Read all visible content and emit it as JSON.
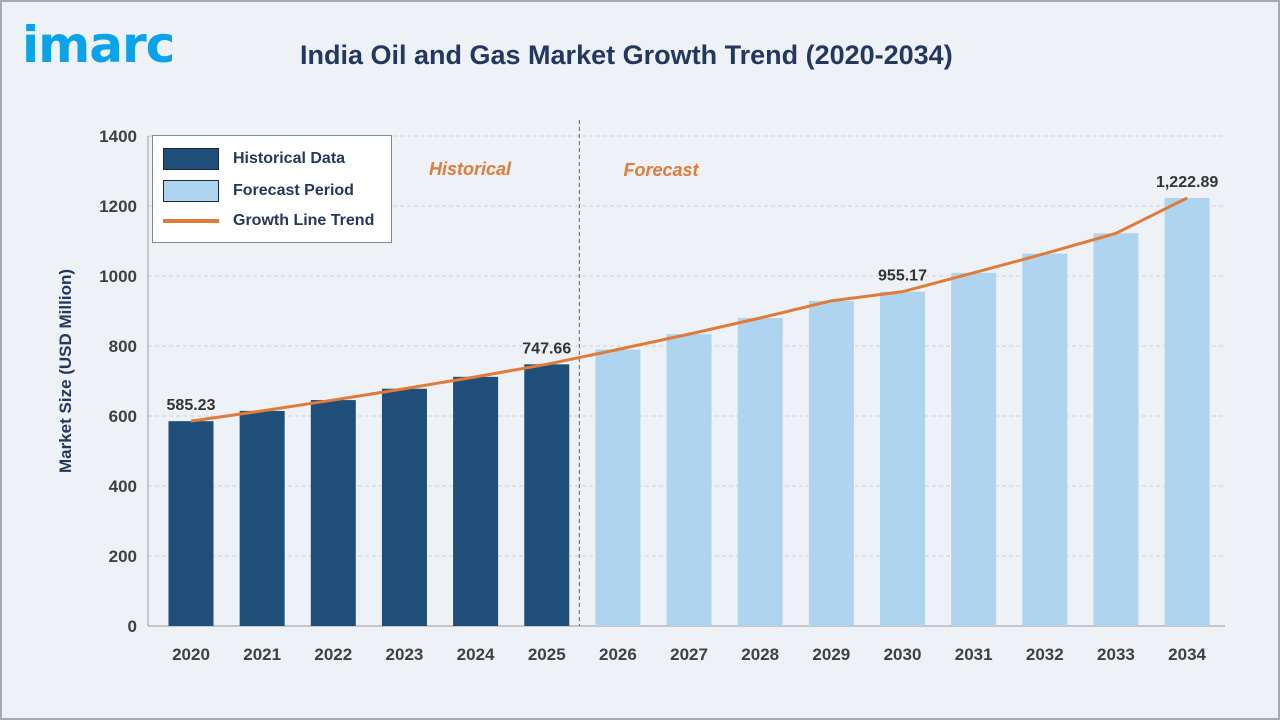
{
  "brand": {
    "logo_text": "imarc"
  },
  "chart_data": {
    "type": "bar",
    "title": "India Oil and Gas Market Growth Trend (2020-2034)",
    "xlabel": "",
    "ylabel": "Market Size (USD Million)",
    "ylim": [
      0,
      1400
    ],
    "yticks": [
      0,
      200,
      400,
      600,
      800,
      1000,
      1200,
      1400
    ],
    "grid": true,
    "legend_placement": "top-left",
    "categories": [
      "2020",
      "2021",
      "2022",
      "2023",
      "2024",
      "2025",
      "2026",
      "2027",
      "2028",
      "2029",
      "2030",
      "2031",
      "2032",
      "2033",
      "2034"
    ],
    "series": [
      {
        "name": "Historical Data",
        "color": "#1f4e79",
        "values": [
          585.23,
          614.6,
          645.5,
          677.9,
          711.9,
          747.66,
          null,
          null,
          null,
          null,
          null,
          null,
          null,
          null,
          null
        ]
      },
      {
        "name": "Forecast Period",
        "color": "#aed4ef",
        "values": [
          null,
          null,
          null,
          null,
          null,
          null,
          790,
          834,
          880,
          929,
          955.17,
          1009,
          1064,
          1122,
          1222.89
        ]
      },
      {
        "name": "Growth Line Trend",
        "type": "line",
        "color": "#e07b39",
        "values": [
          585.23,
          614.6,
          645.5,
          677.9,
          711.9,
          747.66,
          790,
          834,
          880,
          929,
          955.17,
          1009,
          1064,
          1122,
          1222.89
        ]
      }
    ],
    "data_labels": [
      {
        "category": "2020",
        "text": "585.23"
      },
      {
        "category": "2025",
        "text": "747.66"
      },
      {
        "category": "2030",
        "text": "955.17"
      },
      {
        "category": "2034",
        "text": "1,222.89"
      }
    ],
    "annotations": {
      "historical": "Historical",
      "forecast": "Forecast"
    }
  }
}
